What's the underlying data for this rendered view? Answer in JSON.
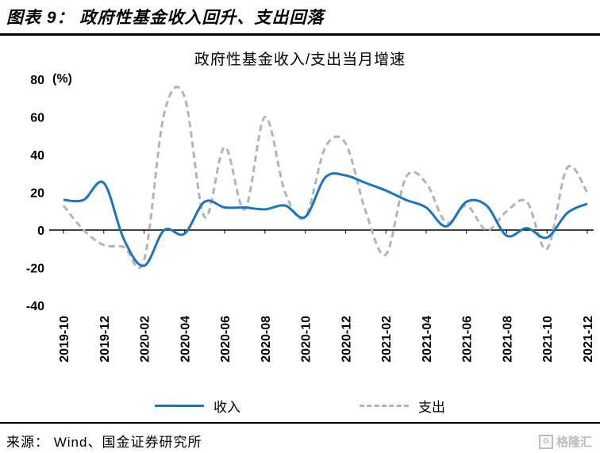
{
  "header": {
    "title": "图表 9：  政府性基金收入回升、支出回落"
  },
  "chart_data": {
    "type": "line",
    "title": "政府性基金收入/支出当月增速",
    "unit_label": "(%)",
    "ylim": [
      -40,
      80
    ],
    "y_ticks": [
      80,
      60,
      40,
      20,
      0,
      -20,
      -40
    ],
    "grid": false,
    "legend_position": "bottom",
    "categories": [
      "2019-10",
      "2019-11",
      "2019-12",
      "2020-01",
      "2020-02",
      "2020-03",
      "2020-04",
      "2020-05",
      "2020-06",
      "2020-07",
      "2020-08",
      "2020-09",
      "2020-10",
      "2020-11",
      "2020-12",
      "2021-01",
      "2021-02",
      "2021-03",
      "2021-04",
      "2021-05",
      "2021-06",
      "2021-07",
      "2021-08",
      "2021-09",
      "2021-10",
      "2021-11",
      "2021-12"
    ],
    "x_tick_labels": [
      "2019-10",
      "2019-12",
      "2020-02",
      "2020-04",
      "2020-06",
      "2020-08",
      "2020-10",
      "2020-12",
      "2021-02",
      "2021-04",
      "2021-06",
      "2021-08",
      "2021-10",
      "2021-12"
    ],
    "series": [
      {
        "name": "收入",
        "style": "solid",
        "color": "#1576c8",
        "values": [
          16,
          16,
          25,
          -5,
          -19,
          0,
          -2,
          15,
          12,
          12,
          11,
          13,
          7,
          28,
          29,
          25,
          21,
          16,
          12,
          2,
          15,
          13,
          -3,
          1,
          -4,
          9,
          14
        ]
      },
      {
        "name": "支出",
        "style": "dashed",
        "color": "#b4b4b4",
        "values": [
          13,
          0,
          -8,
          -9,
          -16,
          62,
          71,
          7,
          44,
          11,
          60,
          20,
          7,
          44,
          46,
          10,
          -13,
          28,
          25,
          4,
          13,
          0,
          10,
          15,
          -10,
          33,
          20
        ]
      }
    ]
  },
  "footer": {
    "source": "来源：  Wind、国金证券研究所",
    "logo_badge": "G",
    "logo_text": "格隆汇"
  }
}
